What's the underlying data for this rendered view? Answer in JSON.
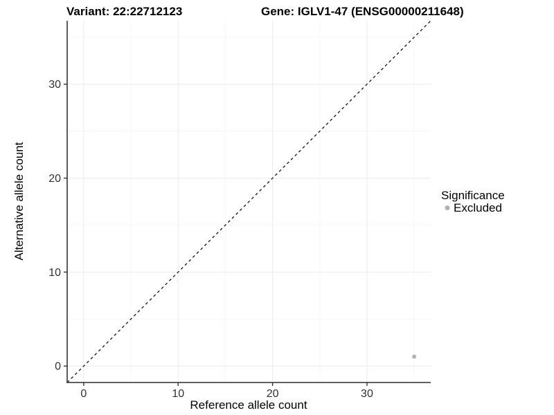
{
  "header": {
    "title_left": "Variant: 22:22712123",
    "title_right": "Gene: IGLV1-47 (ENSG00000211648)"
  },
  "axes": {
    "xlabel": "Reference allele count",
    "ylabel": "Alternative allele count"
  },
  "legend": {
    "title": "Significance",
    "items": [
      {
        "label": "Excluded",
        "color": "#b2b2b2"
      }
    ]
  },
  "chart_data": {
    "type": "scatter",
    "title": "Variant: 22:22712123 — Gene: IGLV1-47 (ENSG00000211648)",
    "xlabel": "Reference allele count",
    "ylabel": "Alternative allele count",
    "xlim": [
      -1.75,
      36.75
    ],
    "ylim": [
      -1.75,
      36.75
    ],
    "x_major_ticks": [
      0,
      10,
      20,
      30
    ],
    "y_major_ticks": [
      0,
      10,
      20,
      30
    ],
    "x_minor_ticks": [
      5,
      15,
      25,
      35
    ],
    "y_minor_ticks": [
      5,
      15,
      25,
      35
    ],
    "grid": true,
    "legend_position": "right",
    "series": [
      {
        "name": "Excluded",
        "color": "#b2b2b2",
        "points": [
          {
            "x": 35,
            "y": 1
          }
        ]
      }
    ],
    "reference_line": {
      "type": "identity",
      "equation": "y = x",
      "style": "dashed",
      "color": "#111111",
      "from": [
        -1.75,
        -1.75
      ],
      "to": [
        36.75,
        36.75
      ]
    }
  },
  "colors": {
    "background": "#ffffff",
    "grid_major": "#ececec",
    "grid_minor": "#f5f5f5",
    "axis_line": "#4a4a4a",
    "tick_mark": "#333333",
    "tick_label": "#303030",
    "point": "#b2b2b2"
  }
}
